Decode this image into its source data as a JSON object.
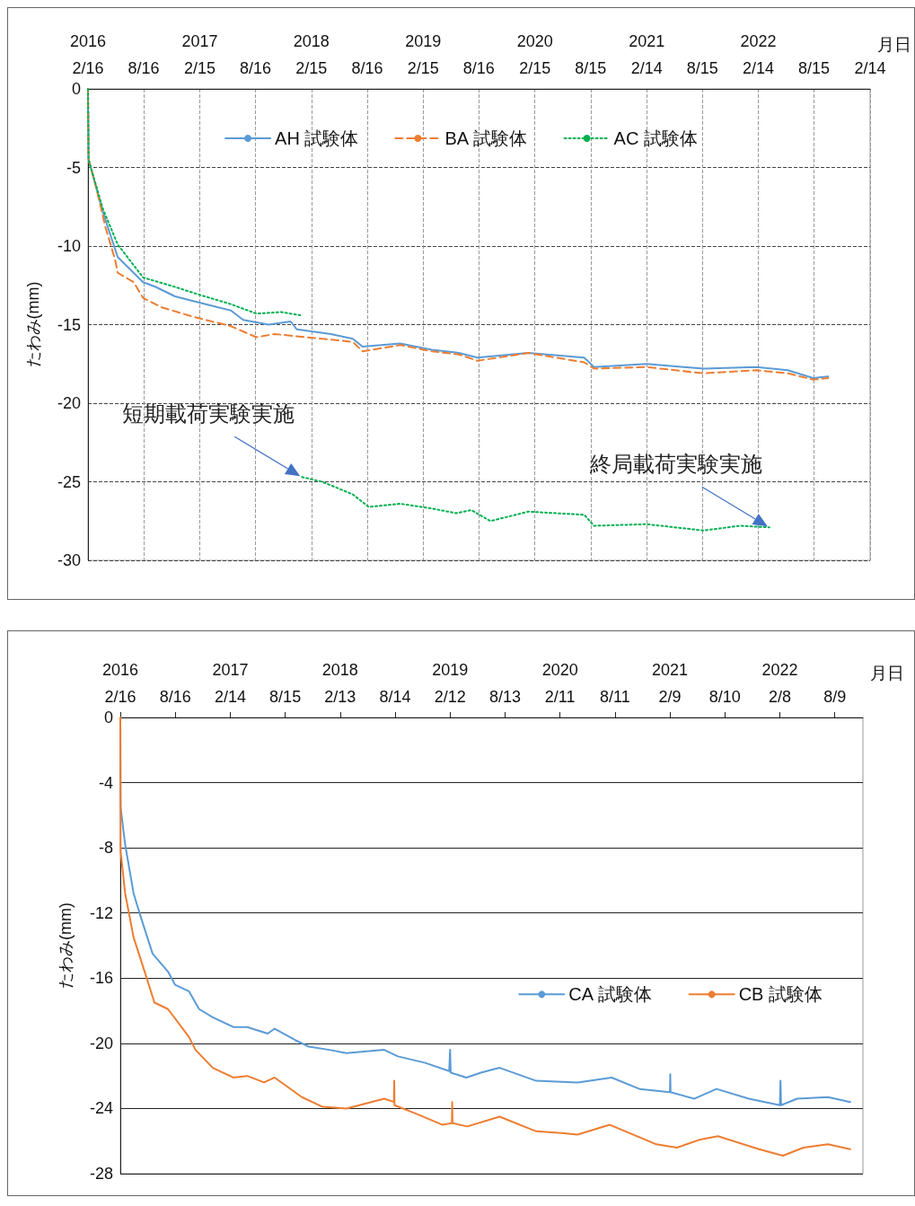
{
  "chart_data": [
    {
      "type": "line",
      "xlabel": "月日",
      "ylabel": "たわみ(mm)",
      "xlim": [
        "2016-02-16",
        "2023-02-14"
      ],
      "ylim": [
        -30,
        0
      ],
      "yticks": [
        0,
        -5,
        -10,
        -15,
        -20,
        -25,
        -30
      ],
      "xticks": [
        {
          "value": "2016-02-16",
          "label": "2016\n2/16"
        },
        {
          "value": "2016-08-16",
          "label": "8/16"
        },
        {
          "value": "2017-02-15",
          "label": "2017\n2/15"
        },
        {
          "value": "2017-08-16",
          "label": "8/16"
        },
        {
          "value": "2018-02-15",
          "label": "2018\n2/15"
        },
        {
          "value": "2018-08-16",
          "label": "8/16"
        },
        {
          "value": "2019-02-15",
          "label": "2019\n2/15"
        },
        {
          "value": "2019-08-16",
          "label": "8/16"
        },
        {
          "value": "2020-02-15",
          "label": "2020\n2/15"
        },
        {
          "value": "2020-08-15",
          "label": "8/15"
        },
        {
          "value": "2021-02-14",
          "label": "2021\n2/14"
        },
        {
          "value": "2021-08-15",
          "label": "8/15"
        },
        {
          "value": "2022-02-14",
          "label": "2022\n2/14"
        },
        {
          "value": "2022-08-15",
          "label": "8/15"
        },
        {
          "value": "2023-02-14",
          "label": "2/14"
        }
      ],
      "grid": true,
      "legend": "top",
      "marker": "none",
      "annotations": [
        {
          "text": "短期載荷実験実施",
          "x": "2018-01-15",
          "y": -24.7
        },
        {
          "text": "終局載荷実験実施",
          "x": "2022-03-22",
          "y": -27.9
        }
      ],
      "series": [
        {
          "name": "AH 試験体",
          "color": "#5b9bd5",
          "line_style": "solid",
          "x": [
            "2016-02-16",
            "2016-02-18",
            "2016-04-04",
            "2016-05-23",
            "2016-08-14",
            "2016-09-24",
            "2016-11-26",
            "2017-02-14",
            "2017-05-28",
            "2017-07-07",
            "2017-09-28",
            "2017-12-09",
            "2017-12-29",
            "2018-04-19",
            "2018-06-30",
            "2018-08-01",
            "2018-12-02",
            "2019-03-15",
            "2019-06-12",
            "2019-08-11",
            "2020-01-24",
            "2020-07-25",
            "2020-08-26",
            "2021-02-14",
            "2021-08-19",
            "2022-02-07",
            "2022-05-21",
            "2022-08-12",
            "2022-09-30"
          ],
          "values": [
            0,
            -4.5,
            -7.8,
            -10.7,
            -12.3,
            -12.6,
            -13.2,
            -13.6,
            -14.1,
            -14.7,
            -15.0,
            -14.8,
            -15.3,
            -15.6,
            -15.9,
            -16.4,
            -16.2,
            -16.6,
            -16.8,
            -17.1,
            -16.8,
            -17.1,
            -17.7,
            -17.5,
            -17.8,
            -17.7,
            -17.9,
            -18.4,
            -18.3
          ]
        },
        {
          "name": "BA 試験体",
          "color": "#ed7d31",
          "line_style": "dashed",
          "x": [
            "2016-02-16",
            "2016-02-18",
            "2016-03-13",
            "2016-04-13",
            "2016-05-15",
            "2016-05-23",
            "2016-07-14",
            "2016-08-14",
            "2016-10-14",
            "2017-01-25",
            "2017-05-28",
            "2017-08-19",
            "2017-10-18",
            "2018-03-22",
            "2018-06-30",
            "2018-08-01",
            "2018-12-02",
            "2019-03-15",
            "2019-06-12",
            "2019-08-11",
            "2020-01-24",
            "2020-07-25",
            "2020-08-26",
            "2021-02-14",
            "2021-08-19",
            "2022-02-07",
            "2022-05-21",
            "2022-08-12",
            "2022-09-30"
          ],
          "values": [
            0,
            -4.5,
            -6.2,
            -8.8,
            -10.9,
            -11.7,
            -12.3,
            -13.3,
            -13.9,
            -14.5,
            -15.1,
            -15.8,
            -15.6,
            -15.9,
            -16.1,
            -16.7,
            -16.3,
            -16.7,
            -16.9,
            -17.3,
            -16.8,
            -17.4,
            -17.8,
            -17.7,
            -18.1,
            -17.9,
            -18.1,
            -18.5,
            -18.4
          ]
        },
        {
          "name": "AC 試験体",
          "color": "#00b050",
          "line_style": "dotted",
          "x": [
            "2016-02-16",
            "2016-02-18",
            "2016-04-04",
            "2016-05-23",
            "2016-08-14",
            "2016-11-26",
            "2017-02-14",
            "2017-05-28",
            "2017-08-19",
            "2017-11-07",
            "2018-01-09",
            "2018-01-11",
            "2018-01-15",
            "2018-03-22",
            "2018-06-30",
            "2018-08-21",
            "2018-12-02",
            "2019-03-15",
            "2019-06-03",
            "2019-07-22",
            "2019-09-23",
            "2020-01-24",
            "2020-07-25",
            "2020-08-26",
            "2021-02-14",
            "2021-08-19",
            "2021-12-17",
            "2022-03-22"
          ],
          "values": [
            0,
            -4.5,
            -7.6,
            -9.9,
            -12.0,
            -12.6,
            -13.1,
            -13.7,
            -14.3,
            -14.2,
            -14.4,
            null,
            -24.7,
            -25.0,
            -25.8,
            -26.6,
            -26.4,
            -26.7,
            -27.0,
            -26.8,
            -27.5,
            -26.9,
            -27.1,
            -27.8,
            -27.7,
            -28.1,
            -27.8,
            -27.9
          ]
        }
      ]
    },
    {
      "type": "line",
      "xlabel": "月日",
      "ylabel": "たわみ(mm)",
      "xlim": [
        "2016-02-16",
        "2022-11-10"
      ],
      "ylim": [
        -28,
        0
      ],
      "yticks": [
        0,
        -4,
        -8,
        -12,
        -16,
        -20,
        -24,
        -28
      ],
      "xticks": [
        {
          "value": "2016-02-16",
          "label": "2016\n2/16"
        },
        {
          "value": "2016-08-16",
          "label": "8/16"
        },
        {
          "value": "2017-02-14",
          "label": "2017\n2/14"
        },
        {
          "value": "2017-08-15",
          "label": "8/15"
        },
        {
          "value": "2018-02-13",
          "label": "2018\n2/13"
        },
        {
          "value": "2018-08-14",
          "label": "8/14"
        },
        {
          "value": "2019-02-12",
          "label": "2019\n2/12"
        },
        {
          "value": "2019-08-13",
          "label": "8/13"
        },
        {
          "value": "2020-02-11",
          "label": "2020\n2/11"
        },
        {
          "value": "2020-08-11",
          "label": "8/11"
        },
        {
          "value": "2021-02-09",
          "label": "2021\n2/9"
        },
        {
          "value": "2021-08-10",
          "label": "8/10"
        },
        {
          "value": "2022-02-08",
          "label": "2022\n2/8"
        },
        {
          "value": "2022-08-09",
          "label": "8/9"
        }
      ],
      "grid": "y",
      "legend": "right",
      "marker": "none",
      "line_style": "solid",
      "series": [
        {
          "name": "CA 試験体",
          "color": "#5b9bd5",
          "x": [
            "2016-02-16",
            "2016-02-17",
            "2016-03-03",
            "2016-03-31",
            "2016-04-23",
            "2016-06-02",
            "2016-07-23",
            "2016-08-15",
            "2016-09-30",
            "2016-11-03",
            "2016-12-18",
            "2017-02-24",
            "2017-04-11",
            "2017-06-18",
            "2017-07-11",
            "2017-09-17",
            "2017-11-01",
            "2018-01-08",
            "2018-03-06",
            "2018-07-09",
            "2018-08-23",
            "2018-11-22",
            "2019-02-09",
            "2019-02-12",
            "2019-02-14",
            "2019-04-07",
            "2019-05-25",
            "2019-07-26",
            "2019-11-24",
            "2020-04-09",
            "2020-07-31",
            "2020-10-31",
            "2021-02-09",
            "2021-02-10",
            "2021-02-11",
            "2021-04-30",
            "2021-07-13",
            "2021-10-28",
            "2022-02-08",
            "2022-02-10",
            "2022-02-12",
            "2022-04-06",
            "2022-07-17",
            "2022-09-29"
          ],
          "values": [
            0,
            -5.5,
            -7.8,
            -10.8,
            -12.2,
            -14.5,
            -15.6,
            -16.4,
            -16.8,
            -17.9,
            -18.4,
            -19.0,
            -19.0,
            -19.4,
            -19.1,
            -19.8,
            -20.2,
            -20.4,
            -20.6,
            -20.4,
            -20.8,
            -21.2,
            -21.7,
            -20.4,
            -21.8,
            -22.1,
            -21.8,
            -21.5,
            -22.3,
            -22.4,
            -22.1,
            -22.8,
            -23.0,
            -21.9,
            -23.0,
            -23.4,
            -22.8,
            -23.4,
            -23.8,
            -22.3,
            -23.8,
            -23.4,
            -23.3,
            -23.6
          ]
        },
        {
          "name": "CB 試験体",
          "color": "#ed7d31",
          "x": [
            "2016-02-16",
            "2016-02-17",
            "2016-03-03",
            "2016-03-31",
            "2016-05-10",
            "2016-06-08",
            "2016-07-23",
            "2016-09-30",
            "2016-10-22",
            "2016-12-18",
            "2017-02-24",
            "2017-04-11",
            "2017-06-06",
            "2017-07-11",
            "2017-10-09",
            "2017-12-17",
            "2018-03-06",
            "2018-07-09",
            "2018-08-10",
            "2018-08-11",
            "2018-08-12",
            "2018-10-20",
            "2019-01-18",
            "2019-02-18",
            "2019-02-19",
            "2019-02-20",
            "2019-04-10",
            "2019-07-26",
            "2019-11-24",
            "2020-02-16",
            "2020-04-09",
            "2020-07-25",
            "2020-12-26",
            "2021-03-04",
            "2021-05-21",
            "2021-07-18",
            "2021-12-01",
            "2022-02-18",
            "2022-04-27",
            "2022-07-17",
            "2022-09-29"
          ],
          "values": [
            0,
            -8.2,
            -10.8,
            -13.5,
            -15.8,
            -17.5,
            -17.9,
            -19.6,
            -20.4,
            -21.5,
            -22.1,
            -22.0,
            -22.4,
            -22.1,
            -23.3,
            -23.9,
            -24.0,
            -23.4,
            -23.6,
            -22.3,
            -23.8,
            -24.3,
            -25.0,
            -24.9,
            -23.6,
            -24.9,
            -25.1,
            -24.5,
            -25.4,
            -25.5,
            -25.6,
            -25.0,
            -26.2,
            -26.4,
            -25.9,
            -25.7,
            -26.5,
            -26.9,
            -26.4,
            -26.2,
            -26.5
          ]
        }
      ]
    }
  ]
}
